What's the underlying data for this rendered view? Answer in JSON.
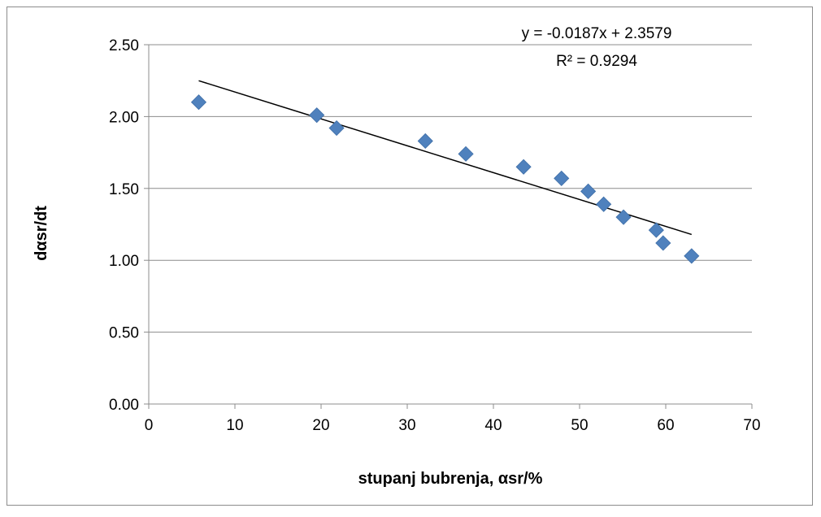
{
  "chart_data": {
    "type": "scatter",
    "title": "",
    "xlabel": "stupanj bubrenja, αsr/%",
    "ylabel": "dαsr/dt",
    "xlim": [
      0,
      70
    ],
    "ylim": [
      0,
      2.5
    ],
    "x_ticks": [
      "0",
      "10",
      "20",
      "30",
      "40",
      "50",
      "60",
      "70"
    ],
    "y_ticks": [
      "0.00",
      "0.50",
      "1.00",
      "1.50",
      "2.00",
      "2.50"
    ],
    "grid": "horizontal",
    "legend": "none",
    "series": [
      {
        "marker": "diamond",
        "color": "#4F81BD",
        "points": [
          {
            "x": 5.8,
            "y": 2.1
          },
          {
            "x": 19.5,
            "y": 2.01
          },
          {
            "x": 21.8,
            "y": 1.92
          },
          {
            "x": 32.1,
            "y": 1.83
          },
          {
            "x": 36.8,
            "y": 1.74
          },
          {
            "x": 43.5,
            "y": 1.65
          },
          {
            "x": 47.9,
            "y": 1.57
          },
          {
            "x": 51.0,
            "y": 1.48
          },
          {
            "x": 52.8,
            "y": 1.39
          },
          {
            "x": 55.1,
            "y": 1.3
          },
          {
            "x": 58.9,
            "y": 1.21
          },
          {
            "x": 59.7,
            "y": 1.12
          },
          {
            "x": 63.0,
            "y": 1.03
          }
        ]
      }
    ],
    "trendline": {
      "slope": -0.0187,
      "intercept": 2.3579,
      "x_range": [
        5.8,
        63.0
      ],
      "color": "#000000",
      "equation_label": "y = -0.0187x + 2.3579",
      "r2_label": "R² = 0.9294"
    }
  }
}
